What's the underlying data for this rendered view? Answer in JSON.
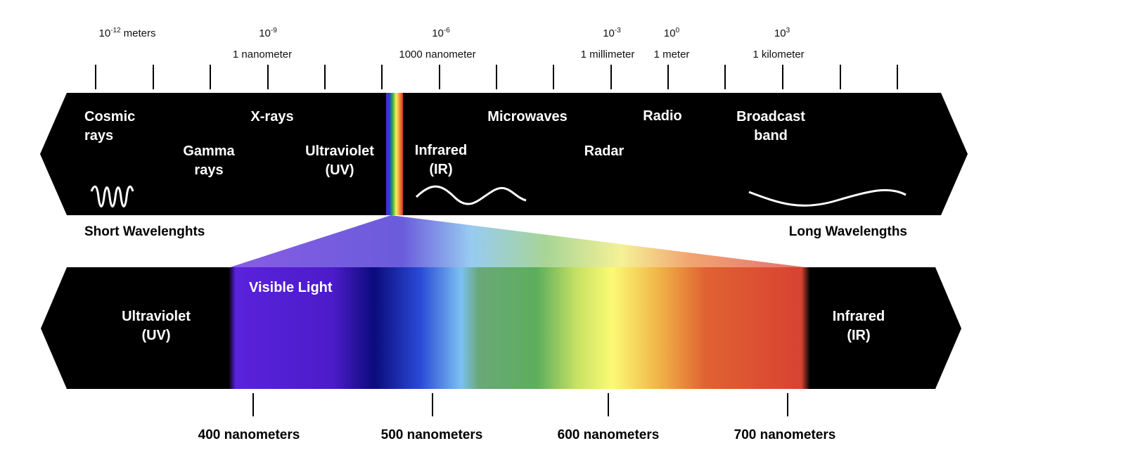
{
  "scale_labels": [
    {
      "base": "10",
      "exponent": "-12",
      "unit": "meters"
    },
    {
      "base": "10",
      "exponent": "-9",
      "caption": "1 nanometer"
    },
    {
      "base": "10",
      "exponent": "-6",
      "caption": "1000 nanometer"
    },
    {
      "base": "10",
      "exponent": "-3",
      "caption": "1 millimeter"
    },
    {
      "base": "10",
      "exponent": "0",
      "caption": "1 meter"
    },
    {
      "base": "10",
      "exponent": "3",
      "caption": "1 kilometer"
    }
  ],
  "spectrum_bands": [
    {
      "lines": [
        "Cosmic",
        "rays"
      ]
    },
    {
      "lines": [
        "Gamma",
        "rays"
      ]
    },
    {
      "lines": [
        "X-rays"
      ]
    },
    {
      "lines": [
        "Ultraviolet",
        "(UV)"
      ]
    },
    {
      "lines": [
        "Infrared",
        "(IR)"
      ]
    },
    {
      "lines": [
        "Microwaves"
      ]
    },
    {
      "lines": [
        "Radar"
      ]
    },
    {
      "lines": [
        "Radio"
      ]
    },
    {
      "lines": [
        "Broadcast",
        "band"
      ]
    }
  ],
  "short_label": "Short Wavelenghts",
  "long_label": "Long Wavelengths",
  "visible": {
    "title": "Visible Light",
    "left": [
      "Ultraviolet",
      "(UV)"
    ],
    "right": [
      "Infrared",
      "(IR)"
    ]
  },
  "nm_labels": [
    "400 nanometers",
    "500 nanometers",
    "600 nanometers",
    "700 nanometers"
  ]
}
